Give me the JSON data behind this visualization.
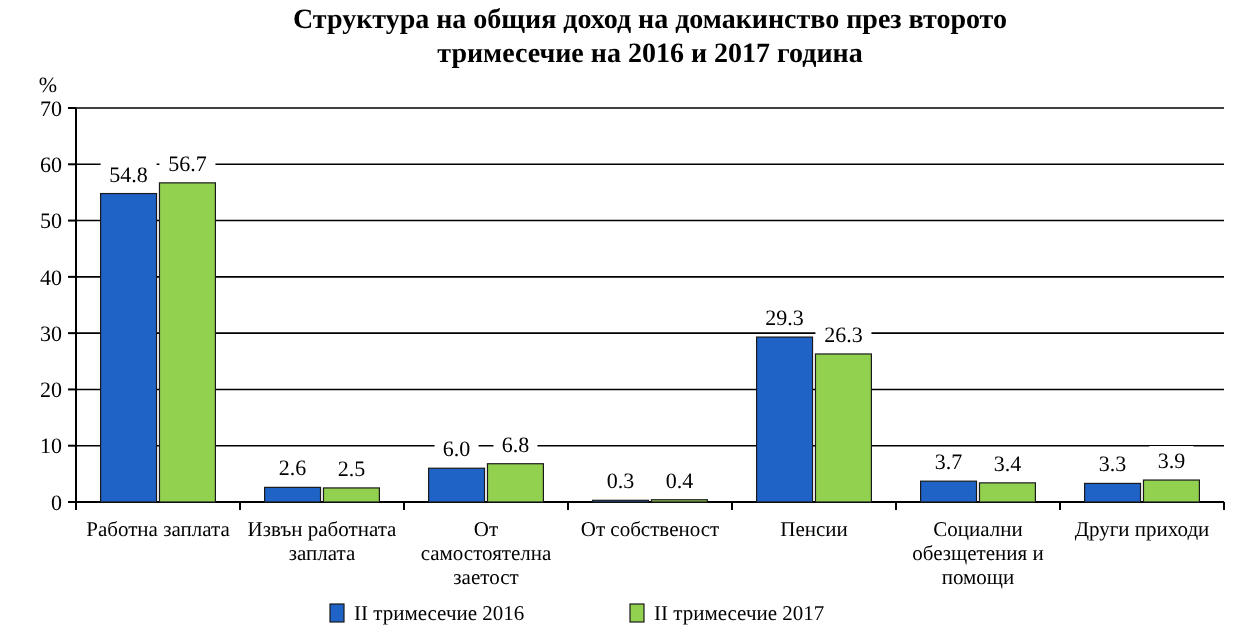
{
  "chart_data": {
    "type": "bar",
    "title": "Структура на общия доход на домакинство през второто тримесечие на 2016 и 2017 година",
    "ylabel": "%",
    "categories": [
      "Работна заплата",
      "Извън работната заплата",
      "От самостоятелна заетост",
      "От собственост",
      "Пенсии",
      "Социални обезщетения и помощи",
      "Други приходи"
    ],
    "series": [
      {
        "name": "II  тримесечие 2016",
        "color": "#1f63c6",
        "values": [
          54.8,
          2.6,
          6.0,
          0.3,
          29.3,
          3.7,
          3.3
        ],
        "value_labels": [
          "54.8",
          "2.6",
          "6.0",
          "0.3",
          "29.3",
          "3.7",
          "3.3"
        ]
      },
      {
        "name": "II  тримесечие 2017",
        "color": "#92d050",
        "values": [
          56.7,
          2.5,
          6.8,
          0.4,
          26.3,
          3.4,
          3.9
        ],
        "value_labels": [
          "56.7",
          "2.5",
          "6.8",
          "0.4",
          "26.3",
          "3.4",
          "3.9"
        ]
      }
    ],
    "ylim": [
      0,
      70
    ],
    "yticks": [
      0,
      10,
      20,
      30,
      40,
      50,
      60,
      70
    ],
    "grid": "y",
    "legend": "bottom"
  }
}
